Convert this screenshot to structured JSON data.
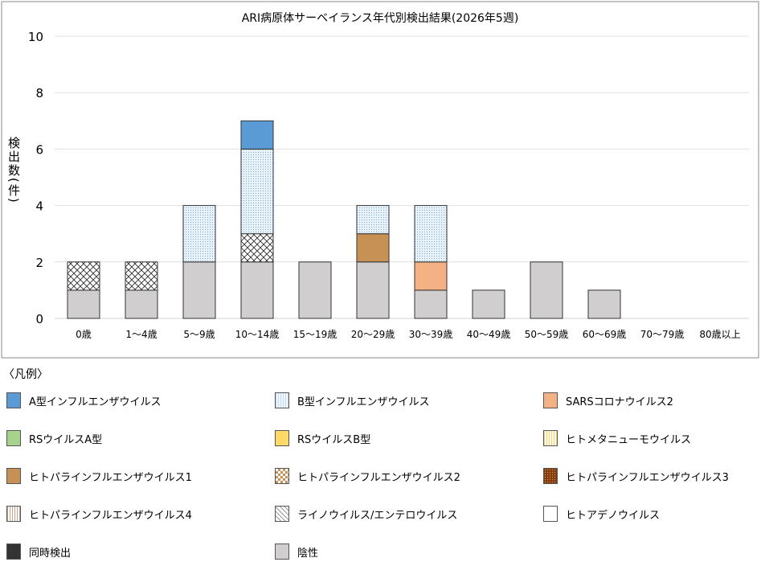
{
  "chart_data": {
    "type": "bar",
    "stacked": true,
    "title": "ARI病原体サーベイランス年代別検出結果(2026年5週)",
    "ylabel": "検出数(件)",
    "xlabel": "",
    "ylim": [
      0,
      10
    ],
    "yticks": [
      0,
      2,
      4,
      6,
      8,
      10
    ],
    "grid": true,
    "categories": [
      "0歳",
      "1～4歳",
      "5～9歳",
      "10～14歳",
      "15～19歳",
      "20～29歳",
      "30～39歳",
      "40～49歳",
      "50～59歳",
      "60～69歳",
      "70～79歳",
      "80歳以上"
    ],
    "series": [
      {
        "name": "陰性",
        "color": "#d0cece",
        "values": [
          1,
          1,
          2,
          2,
          2,
          2,
          1,
          1,
          2,
          1,
          0,
          0
        ]
      },
      {
        "name": "ライノウイルス/エンテロウイルス",
        "color": "#ffffff",
        "values": [
          1,
          1,
          0,
          1,
          0,
          0,
          0,
          0,
          0,
          0,
          0,
          0
        ]
      },
      {
        "name": "ヒトパラインフルエンザウイルス1",
        "color": "#c79155",
        "values": [
          0,
          0,
          0,
          0,
          0,
          1,
          0,
          0,
          0,
          0,
          0,
          0
        ]
      },
      {
        "name": "SARSコロナウイルス2",
        "color": "#f4b183",
        "values": [
          0,
          0,
          0,
          0,
          0,
          0,
          1,
          0,
          0,
          0,
          0,
          0
        ]
      },
      {
        "name": "B型インフルエンザウイルス",
        "color": "#deebf7",
        "values": [
          0,
          0,
          2,
          3,
          0,
          1,
          2,
          0,
          0,
          0,
          0,
          0
        ]
      },
      {
        "name": "A型インフルエンザウイルス",
        "color": "#5b9bd5",
        "values": [
          0,
          0,
          0,
          1,
          0,
          0,
          0,
          0,
          0,
          0,
          0,
          0
        ]
      }
    ]
  },
  "legend": {
    "title": "〈凡例〉",
    "items": [
      {
        "label": "A型インフルエンザウイルス",
        "color": "#5b9bd5",
        "pattern": "solid"
      },
      {
        "label": "B型インフルエンザウイルス",
        "color": "#deebf7",
        "pattern": "dots"
      },
      {
        "label": "SARSコロナウイルス2",
        "color": "#f4b183",
        "pattern": "solid"
      },
      {
        "label": "RSウイルスA型",
        "color": "#a9d18e",
        "pattern": "solid"
      },
      {
        "label": "RSウイルスB型",
        "color": "#ffd966",
        "pattern": "solid"
      },
      {
        "label": "ヒトメタニューモウイルス",
        "color": "#fff2cc",
        "pattern": "vlines-yellow"
      },
      {
        "label": "ヒトパラインフルエンザウイルス1",
        "color": "#c79155",
        "pattern": "solid"
      },
      {
        "label": "ヒトパラインフルエンザウイルス2",
        "color": "#c79155",
        "pattern": "checker"
      },
      {
        "label": "ヒトパラインフルエンザウイルス3",
        "color": "#843c0c",
        "pattern": "dots-dark"
      },
      {
        "label": "ヒトパラインフルエンザウイルス4",
        "color": "#f8e5d6",
        "pattern": "vlines-brown"
      },
      {
        "label": "ライノウイルス/エンテロウイルス",
        "color": "#ffffff",
        "pattern": "cross"
      },
      {
        "label": "ヒトアデノウイルス",
        "color": "#ffffff",
        "pattern": "solid"
      },
      {
        "label": "同時検出",
        "color": "#333333",
        "pattern": "solid"
      },
      {
        "label": "陰性",
        "color": "#d0cece",
        "pattern": "solid"
      }
    ]
  }
}
